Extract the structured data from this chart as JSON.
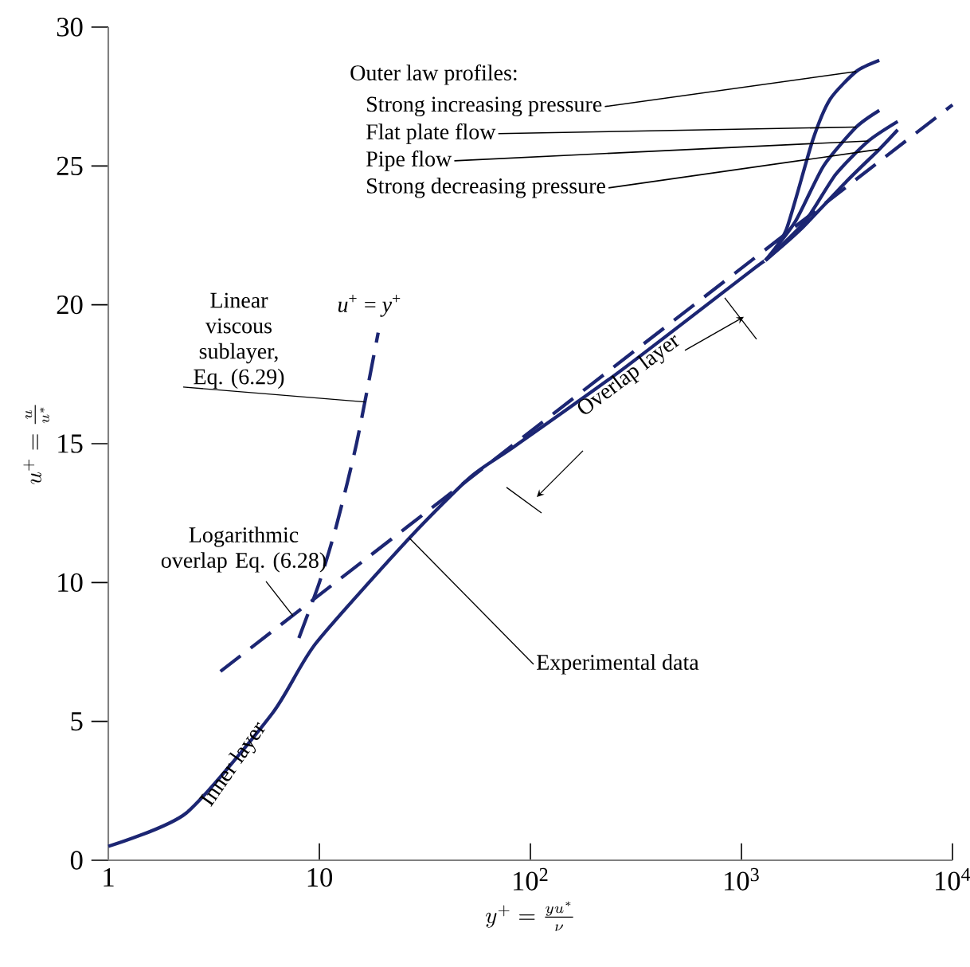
{
  "chart_data": {
    "type": "line",
    "xlabel": "y^+ = \\frac{yu^*}{\\nu}",
    "ylabel": "u^+ = \\frac{u}{u^*}",
    "log": "x",
    "xlim": [
      1,
      10000
    ],
    "ylim": [
      0,
      30
    ],
    "xticks": [
      1,
      10,
      {
        "value": 100,
        "label": "10$^{2}$"
      },
      {
        "value": 1000,
        "label": "10$^{3}$"
      },
      {
        "value": 10000,
        "label": "10$^{4}$"
      }
    ],
    "yticks": [
      0,
      5,
      10,
      15,
      20,
      25,
      30
    ],
    "annotations": [
      "Outer law profiles:",
      {
        "text": "Linear viscous sublayer, Eq. (6.29)",
        "x": 16.5,
        "y": 16.5
      },
      "*u*$^{+}$ = *y*$^{+}$",
      {
        "text": "Logarithmic overlap Eq. (6.28)",
        "x": 7.5,
        "y": 8.8
      },
      {
        "text": "Experimental data",
        "x": 26.7,
        "y": 11.6
      },
      "Inner layer",
      "Overlap layer"
    ],
    "series": [
      {
        "color": "#1c2673",
        "line_style": "solid",
        "x": [
          1,
          2.34,
          6,
          9.6,
          26.7,
          52,
          84,
          265,
          1100,
          1300
        ],
        "values": [
          0.5,
          1.7,
          5.3,
          7.8,
          11.6,
          13.8,
          14.9,
          17.6,
          21.2,
          21.6
        ]
      },
      {
        "name": "Strong increasing pressure",
        "color": "#1c2673",
        "line_style": "solid",
        "x": [
          1300,
          1630,
          2170,
          2630,
          3500,
          4500
        ],
        "values": [
          21.6,
          22.7,
          25.9,
          27.4,
          28.4,
          28.8
        ]
      },
      {
        "name": "Flat plate flow",
        "color": "#1c2673",
        "line_style": "solid",
        "x": [
          1300,
          1800,
          2450,
          3500,
          4500
        ],
        "values": [
          21.6,
          23.0,
          25.0,
          26.4,
          27.0
        ]
      },
      {
        "name": "Pipe flow",
        "color": "#1c2673",
        "line_style": "solid",
        "x": [
          1300,
          2000,
          2800,
          4000,
          5500
        ],
        "values": [
          21.6,
          23.0,
          24.7,
          25.9,
          26.6
        ]
      },
      {
        "name": "Strong decreasing pressure",
        "color": "#1c2673",
        "line_style": "solid",
        "x": [
          1300,
          1900,
          3200,
          4500,
          5500
        ],
        "values": [
          21.6,
          22.7,
          24.5,
          25.6,
          26.3
        ]
      },
      {
        "color": "#1c2673",
        "line_style": "dashed",
        "x": [
          8,
          10,
          12,
          15,
          19
        ],
        "values": [
          8,
          10,
          12,
          15,
          19
        ]
      },
      {
        "color": "#1c2673",
        "line_style": "dashed",
        "x": [
          3.4,
          10000
        ],
        "values": [
          6.8,
          27.2
        ]
      }
    ]
  }
}
